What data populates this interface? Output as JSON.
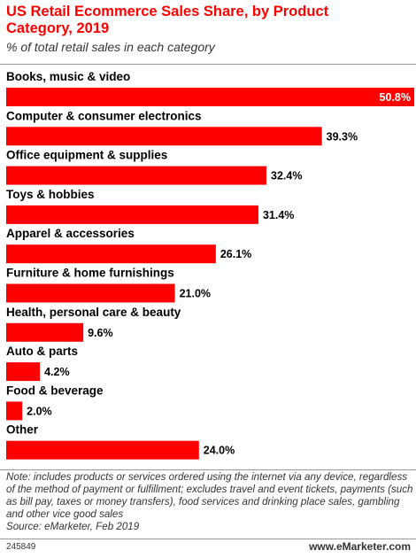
{
  "header": {
    "title": "US Retail Ecommerce Sales Share, by Product Category, 2019",
    "subtitle": "% of total retail sales in each category"
  },
  "chart_data": {
    "type": "bar",
    "orientation": "horizontal",
    "categories": [
      "Books, music & video",
      "Computer & consumer electronics",
      "Office equipment & supplies",
      "Toys & hobbies",
      "Apparel & accessories",
      "Furniture & home furnishings",
      "Health, personal care & beauty",
      "Auto & parts",
      "Food & beverage",
      "Other"
    ],
    "values": [
      50.8,
      39.3,
      32.4,
      31.4,
      26.1,
      21.0,
      9.6,
      4.2,
      2.0,
      24.0
    ],
    "value_labels": [
      "50.8%",
      "39.3%",
      "32.4%",
      "31.4%",
      "26.1%",
      "21.0%",
      "9.6%",
      "4.2%",
      "2.0%",
      "24.0%"
    ],
    "bar_color": "#ff0000",
    "xlim": [
      0,
      50.8
    ],
    "grid": false,
    "legend": "none"
  },
  "footer": {
    "notes": "Note: includes products or services ordered using the internet via any device, regardless of the method of payment or fulfillment; excludes travel and event tickets, payments (such as bill pay, taxes or money transfers), food services and drinking place sales, gambling and other vice good sales\nSource: eMarketer, Feb 2019",
    "chart_id": "245849",
    "brand": "www.eMarketer.com"
  }
}
